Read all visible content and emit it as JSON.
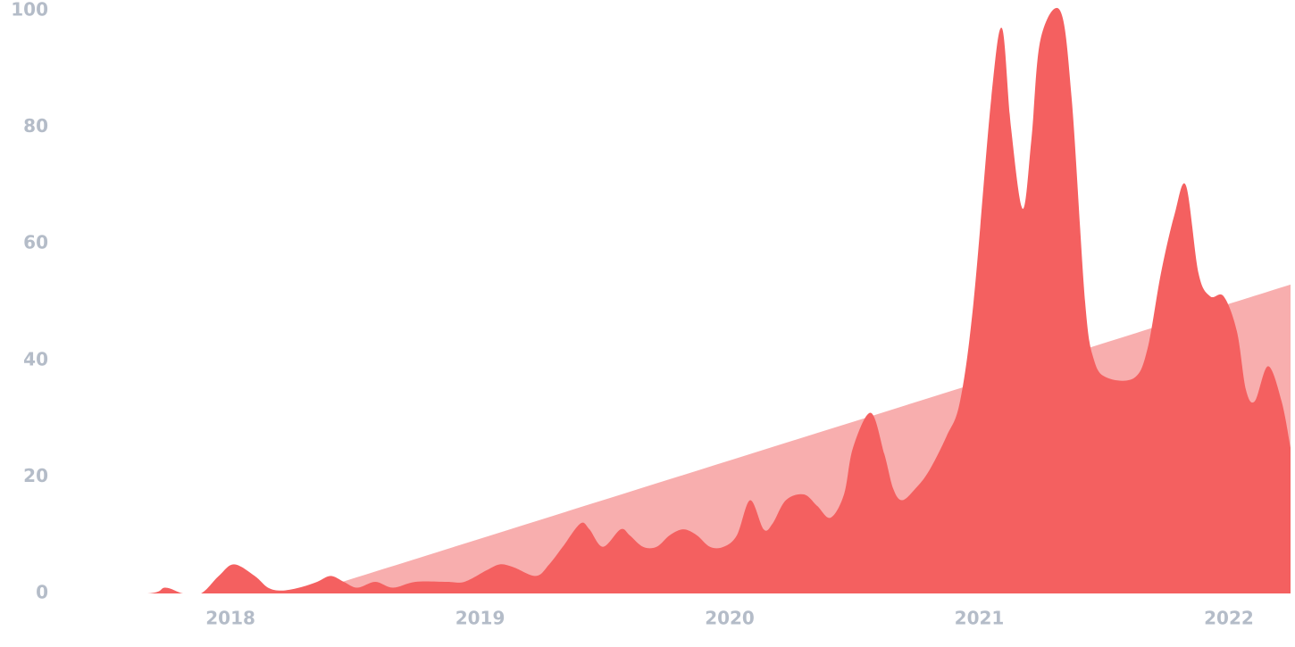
{
  "chart_data": {
    "type": "area",
    "xlim": [
      2017.327,
      2022.247
    ],
    "xticks": [
      2018,
      2019,
      2020,
      2021,
      2022
    ],
    "ylim": [
      0,
      100
    ],
    "yticks": [
      0,
      20,
      40,
      60,
      80,
      100
    ],
    "grid": false,
    "series": [
      {
        "color": "#f8aeae",
        "x": [
          2018.3,
          2022.247
        ],
        "values": [
          0,
          53
        ]
      },
      {
        "color": "#f46060",
        "x": [
          2017.327,
          2017.667,
          2017.739,
          2017.81,
          2017.882,
          2017.953,
          2018.014,
          2018.097,
          2018.15,
          2018.204,
          2018.275,
          2018.347,
          2018.401,
          2018.454,
          2018.508,
          2018.58,
          2018.651,
          2018.741,
          2018.866,
          2018.937,
          2019.027,
          2019.08,
          2019.134,
          2019.224,
          2019.277,
          2019.331,
          2019.402,
          2019.438,
          2019.492,
          2019.563,
          2019.599,
          2019.653,
          2019.707,
          2019.76,
          2019.814,
          2019.868,
          2019.921,
          2019.975,
          2020.029,
          2020.082,
          2020.136,
          2020.172,
          2020.225,
          2020.297,
          2020.351,
          2020.404,
          2020.458,
          2020.494,
          2020.565,
          2020.619,
          2020.655,
          2020.691,
          2020.744,
          2020.798,
          2020.869,
          2020.923,
          2020.977,
          2021.048,
          2021.091,
          2021.127,
          2021.174,
          2021.209,
          2021.245,
          2021.324,
          2021.37,
          2021.424,
          2021.46,
          2021.513,
          2021.621,
          2021.674,
          2021.728,
          2021.782,
          2021.828,
          2021.878,
          2021.925,
          2021.979,
          2022.032,
          2022.068,
          2022.104,
          2022.157,
          2022.211,
          2022.247
        ],
        "values": [
          0,
          0,
          1,
          0,
          0,
          3,
          5,
          3,
          1,
          0.5,
          1,
          2,
          3,
          2,
          1,
          2,
          1,
          2,
          2,
          2,
          4,
          5,
          4.5,
          3,
          5,
          8,
          12,
          11,
          8,
          11,
          10,
          8,
          8,
          10,
          11,
          10,
          8,
          8,
          10,
          16,
          11,
          12,
          16,
          17,
          15,
          13,
          17,
          25,
          31,
          24,
          18,
          16,
          18,
          21,
          27,
          33,
          50,
          85,
          97,
          80,
          66,
          78,
          95,
          100,
          85,
          50,
          40,
          37,
          37,
          42,
          55,
          65,
          70,
          55,
          51,
          51,
          45,
          35,
          33,
          39,
          33,
          25
        ]
      }
    ]
  }
}
